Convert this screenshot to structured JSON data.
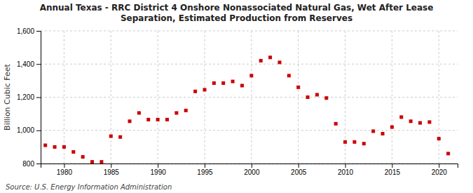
{
  "chart_data": {
    "type": "scatter",
    "title": "Annual Texas - RRC District 4 Onshore Nonassociated Natural Gas, Wet After Lease\nSeparation, Estimated Production from Reserves",
    "ylabel": "Billion Cubic Feet",
    "source": "Source: U.S. Energy Information Administration",
    "x": [
      1978,
      1979,
      1980,
      1981,
      1982,
      1983,
      1984,
      1985,
      1986,
      1987,
      1988,
      1989,
      1990,
      1991,
      1992,
      1993,
      1994,
      1995,
      1996,
      1997,
      1998,
      1999,
      2000,
      2001,
      2002,
      2003,
      2004,
      2005,
      2006,
      2007,
      2008,
      2009,
      2010,
      2011,
      2012,
      2013,
      2014,
      2015,
      2016,
      2017,
      2018,
      2019,
      2020,
      2021
    ],
    "values": [
      910,
      900,
      900,
      870,
      840,
      810,
      810,
      965,
      960,
      1055,
      1105,
      1065,
      1065,
      1065,
      1105,
      1120,
      1235,
      1245,
      1285,
      1285,
      1295,
      1270,
      1330,
      1420,
      1440,
      1410,
      1330,
      1260,
      1200,
      1215,
      1195,
      1040,
      930,
      930,
      920,
      995,
      980,
      1020,
      1080,
      1055,
      1045,
      1050,
      950,
      860
    ],
    "color": "#cc0000",
    "marker": "square",
    "xlim": [
      1977.5,
      2022
    ],
    "ylim": [
      800,
      1600
    ],
    "xticks": [
      1980,
      1985,
      1990,
      1995,
      2000,
      2005,
      2010,
      2015,
      2020
    ],
    "yticks": [
      800,
      {
        "value": 1000,
        "label": "1,000"
      },
      {
        "value": 1200,
        "label": "1,200"
      },
      {
        "value": 1400,
        "label": "1,400"
      },
      {
        "value": 1600,
        "label": "1,600"
      }
    ],
    "grid": true
  }
}
